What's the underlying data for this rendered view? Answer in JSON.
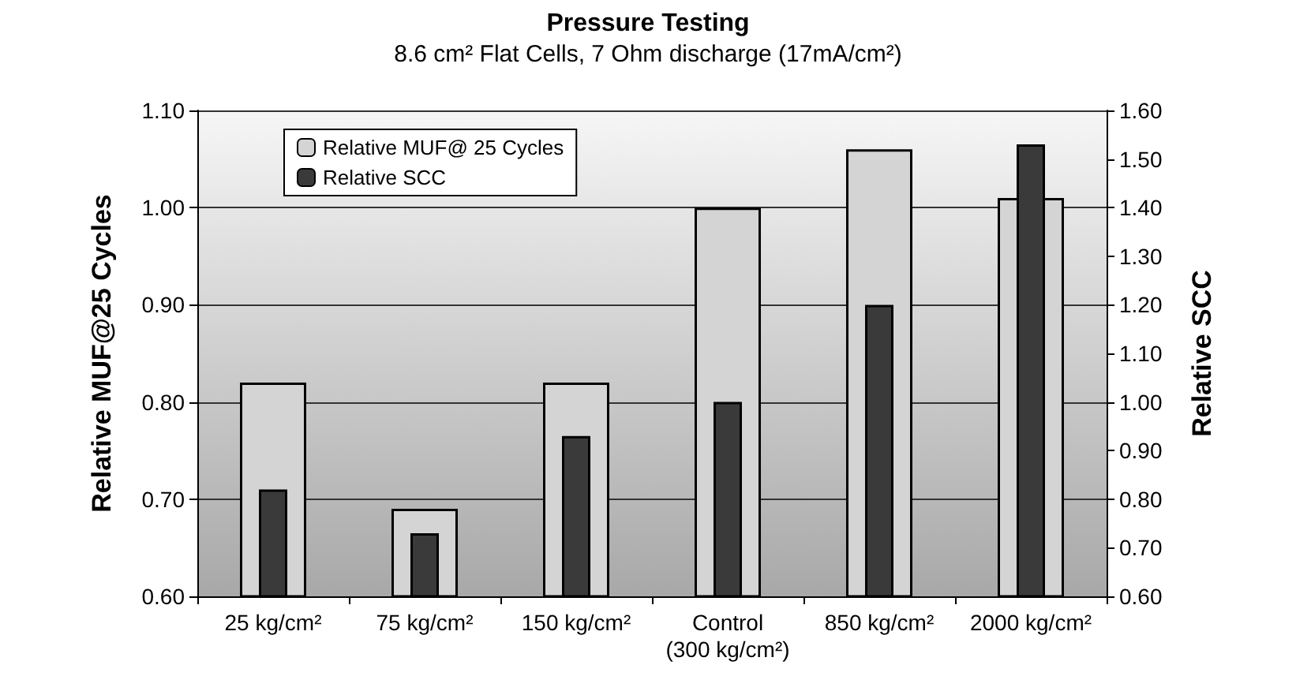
{
  "chart_data": {
    "type": "bar",
    "title": "Pressure Testing",
    "subtitle": "8.6 cm² Flat Cells, 7 Ohm discharge (17mA/cm²)",
    "ylabel": "Relative MUF@25 Cycles",
    "y2label": "Relative SCC",
    "categories": [
      "25 kg/cm²",
      "75 kg/cm²",
      "150 kg/cm²",
      "Control\n(300 kg/cm²)",
      "850 kg/cm²",
      "2000 kg/cm²"
    ],
    "series": [
      {
        "name": "Relative MUF@ 25 Cycles",
        "color": "#d4d4d4",
        "values": [
          0.82,
          0.69,
          0.82,
          1.0,
          1.06,
          1.01
        ]
      },
      {
        "name": "Relative SCC",
        "color": "#3a3a3a",
        "axis": "y2",
        "values": [
          0.82,
          0.73,
          0.93,
          1.0,
          1.2,
          1.53
        ]
      }
    ],
    "ylim": [
      0.6,
      1.1
    ],
    "yticks": [
      {
        "value": 0.6,
        "label": "0.60"
      },
      {
        "value": 0.7,
        "label": "0.70"
      },
      {
        "value": 0.8,
        "label": "0.80"
      },
      {
        "value": 0.9,
        "label": "0.90"
      },
      {
        "value": 1.0,
        "label": "1.00"
      },
      {
        "value": 1.1,
        "label": "1.10"
      }
    ],
    "y2lim": [
      0.6,
      1.6
    ],
    "y2ticks": [
      {
        "value": 0.6,
        "label": "0.60"
      },
      {
        "value": 0.7,
        "label": "0.70"
      },
      {
        "value": 0.8,
        "label": "0.80"
      },
      {
        "value": 0.9,
        "label": "0.90"
      },
      {
        "value": 1.0,
        "label": "1.00"
      },
      {
        "value": 1.1,
        "label": "1.10"
      },
      {
        "value": 1.2,
        "label": "1.20"
      },
      {
        "value": 1.3,
        "label": "1.30"
      },
      {
        "value": 1.4,
        "label": "1.40"
      },
      {
        "value": 1.5,
        "label": "1.50"
      },
      {
        "value": 1.6,
        "label": "1.60"
      }
    ],
    "grid": "y",
    "legend": "top left"
  }
}
